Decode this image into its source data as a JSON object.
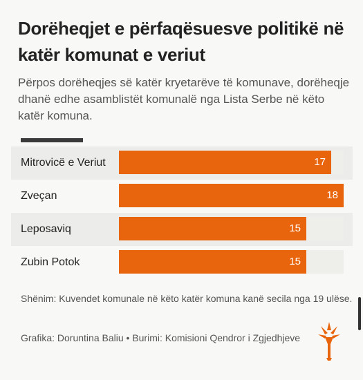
{
  "title": "Dorëheqjet e përfaqësuesve politikë në katër komunat e veriut",
  "subtitle": "Përpos dorëheqjes së katër kryetarëve të komunave, dorëheqje dhanë edhe asamblistët komunalë nga Lista Serbe në këto katër komuna.",
  "note": "Shënim: Kuvendet komunale në këto katër komuna kanë secila nga 19 ulëse.",
  "credit": "Grafika: Doruntina Baliu • Burimi: Komisioni Qendror i Zgjedhjeve",
  "colors": {
    "bar": "#e8650d",
    "track": "#eeeeea"
  },
  "logo_icon": "rferl-torch-logo-icon",
  "chart_data": {
    "type": "bar",
    "orientation": "horizontal",
    "categories": [
      "Mitrovicë e Veriut",
      "Zveçan",
      "Leposaviq",
      "Zubin Potok"
    ],
    "values": [
      17,
      18,
      15,
      15
    ],
    "xlim": [
      0,
      18
    ]
  }
}
